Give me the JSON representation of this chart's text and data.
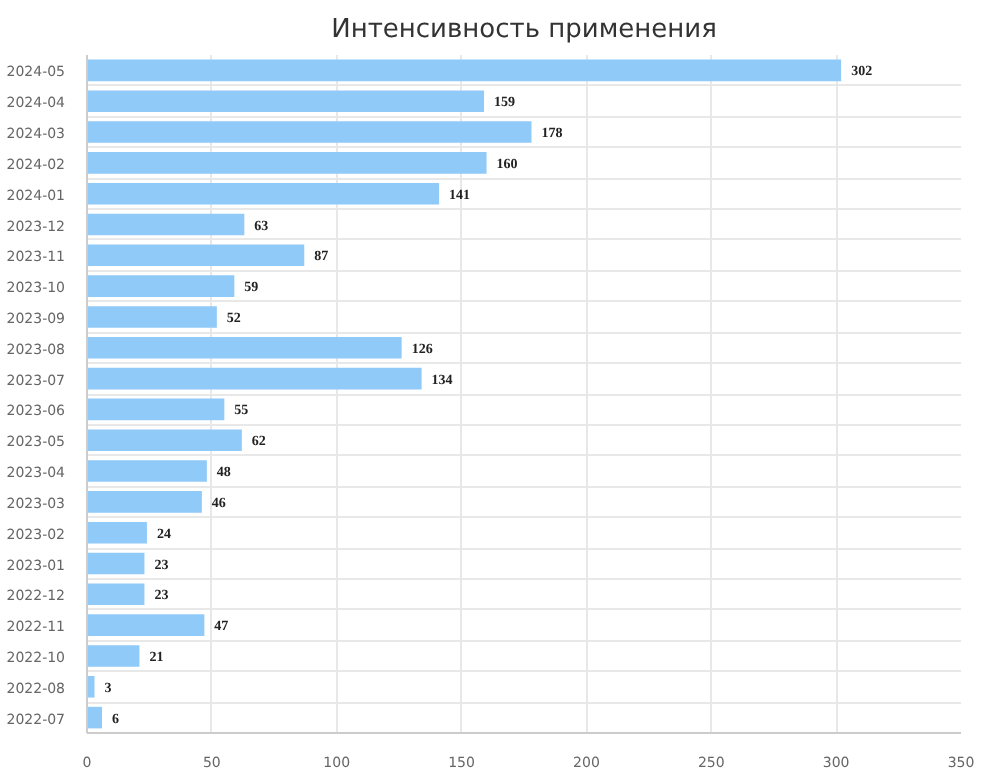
{
  "chart_data": {
    "type": "bar",
    "orientation": "horizontal",
    "title": "Интенсивность применения",
    "categories": [
      "2024-05",
      "2024-04",
      "2024-03",
      "2024-02",
      "2024-01",
      "2023-12",
      "2023-11",
      "2023-10",
      "2023-09",
      "2023-08",
      "2023-07",
      "2023-06",
      "2023-05",
      "2023-04",
      "2023-03",
      "2023-02",
      "2023-01",
      "2022-12",
      "2022-11",
      "2022-10",
      "2022-08",
      "2022-07"
    ],
    "values": [
      302,
      159,
      178,
      160,
      141,
      63,
      87,
      59,
      52,
      126,
      134,
      55,
      62,
      48,
      46,
      24,
      23,
      23,
      47,
      21,
      3,
      6
    ],
    "color": "#90caf9",
    "data_labels": true,
    "grid": true,
    "xlim": [
      0,
      350
    ],
    "xticks": [
      0,
      50,
      100,
      150,
      200,
      250,
      300,
      350
    ]
  }
}
